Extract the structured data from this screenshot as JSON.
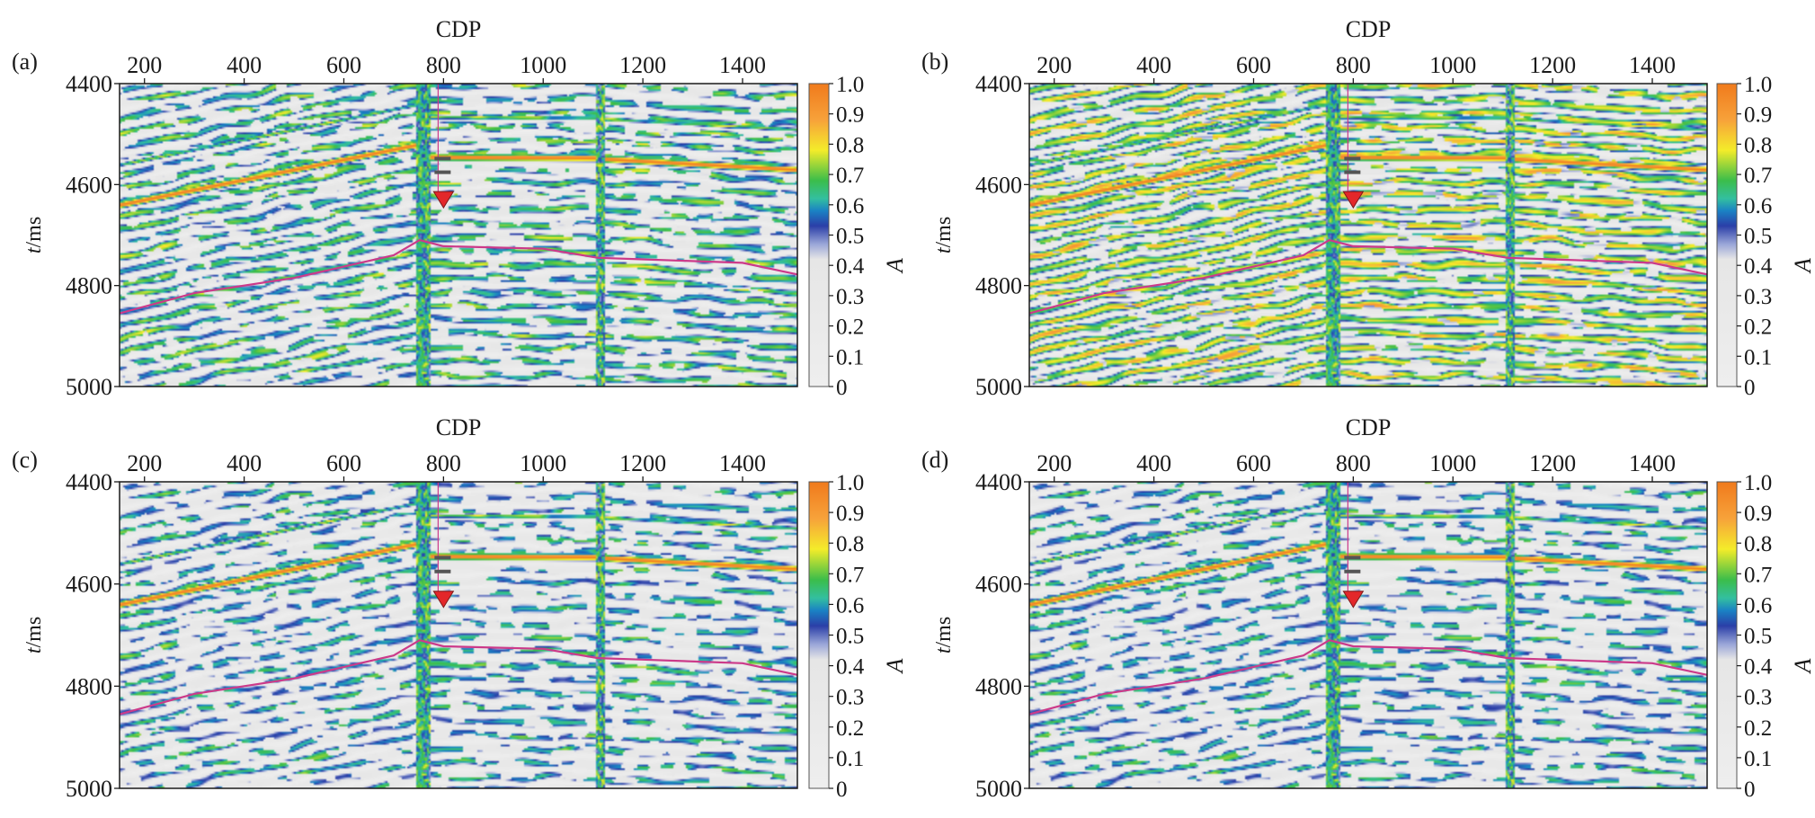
{
  "figure": {
    "panel_order": [
      "a",
      "b",
      "c",
      "d"
    ]
  },
  "colorbar": {
    "label": "A",
    "ticks": [
      "0",
      "0.1",
      "0.2",
      "0.3",
      "0.4",
      "0.5",
      "0.6",
      "0.7",
      "0.8",
      "0.9",
      "1.0"
    ],
    "range": [
      0,
      1
    ],
    "colormap": [
      {
        "at": 0.0,
        "color": "#eeeeee"
      },
      {
        "at": 0.42,
        "color": "#e6e6e6"
      },
      {
        "at": 0.47,
        "color": "#9aa6d8"
      },
      {
        "at": 0.53,
        "color": "#2b3fa8"
      },
      {
        "at": 0.58,
        "color": "#1a82c4"
      },
      {
        "at": 0.62,
        "color": "#33bfa0"
      },
      {
        "at": 0.68,
        "color": "#3bbd4a"
      },
      {
        "at": 0.78,
        "color": "#f4ec2a"
      },
      {
        "at": 0.88,
        "color": "#f7a23a"
      },
      {
        "at": 1.0,
        "color": "#f07a1c"
      }
    ]
  },
  "chart_data": [
    {
      "type": "heatmap",
      "panel_label": "(a)",
      "xlabel": "CDP",
      "ylabel_italic": "t",
      "ylabel_unit": "/ms",
      "xlim": [
        150,
        1510
      ],
      "ylim": [
        4400,
        5000
      ],
      "xticks": [
        "200",
        "400",
        "600",
        "800",
        "1000",
        "1200",
        "1400"
      ],
      "yticks": [
        "4400",
        "4600",
        "4800",
        "5000"
      ],
      "x_axis_position": "top",
      "value_label": "A",
      "section": "conventional",
      "faults_cdp": [
        752,
        1110
      ],
      "horizon_line": {
        "color": "#cc3a8a",
        "x": [
          150,
          300,
          500,
          700,
          752,
          800,
          1000,
          1110,
          1200,
          1400,
          1510
        ],
        "y": [
          4855,
          4815,
          4785,
          4740,
          4710,
          4722,
          4727,
          4745,
          4748,
          4755,
          4778
        ]
      },
      "well_marker": {
        "cdp": 800,
        "t": 4630,
        "color": "#e3272a"
      }
    },
    {
      "type": "heatmap",
      "panel_label": "(b)",
      "xlabel": "CDP",
      "ylabel_italic": "t",
      "ylabel_unit": "/ms",
      "xlim": [
        150,
        1510
      ],
      "ylim": [
        4400,
        5000
      ],
      "xticks": [
        "200",
        "400",
        "600",
        "800",
        "1000",
        "1200",
        "1400"
      ],
      "yticks": [
        "4400",
        "4600",
        "4800",
        "5000"
      ],
      "x_axis_position": "top",
      "value_label": "A",
      "section": "broadband",
      "faults_cdp": [
        752,
        1110
      ],
      "horizon_line": {
        "color": "#cc3a8a",
        "x": [
          150,
          300,
          500,
          700,
          752,
          800,
          1000,
          1110,
          1200,
          1400,
          1510
        ],
        "y": [
          4855,
          4815,
          4785,
          4740,
          4710,
          4722,
          4727,
          4745,
          4748,
          4755,
          4778
        ]
      },
      "well_marker": {
        "cdp": 800,
        "t": 4630,
        "color": "#e3272a"
      }
    },
    {
      "type": "heatmap",
      "panel_label": "(c)",
      "xlabel": "CDP",
      "ylabel_italic": "t",
      "ylabel_unit": "/ms",
      "xlim": [
        150,
        1510
      ],
      "ylim": [
        4400,
        5000
      ],
      "xticks": [
        "200",
        "400",
        "600",
        "800",
        "1000",
        "1200",
        "1400"
      ],
      "yticks": [
        "4400",
        "4600",
        "4800",
        "5000"
      ],
      "x_axis_position": "top",
      "value_label": "A",
      "section": "sparse",
      "faults_cdp": [
        752,
        1110
      ],
      "horizon_line": {
        "color": "#cc3a8a",
        "x": [
          150,
          300,
          500,
          700,
          752,
          800,
          1000,
          1110,
          1200,
          1400,
          1510
        ],
        "y": [
          4855,
          4815,
          4785,
          4740,
          4710,
          4722,
          4727,
          4745,
          4748,
          4755,
          4778
        ]
      },
      "well_marker": {
        "cdp": 800,
        "t": 4630,
        "color": "#e3272a"
      }
    },
    {
      "type": "heatmap",
      "panel_label": "(d)",
      "xlabel": "CDP",
      "ylabel_italic": "t",
      "ylabel_unit": "/ms",
      "xlim": [
        150,
        1510
      ],
      "ylim": [
        4400,
        5000
      ],
      "xticks": [
        "200",
        "400",
        "600",
        "800",
        "1000",
        "1200",
        "1400"
      ],
      "yticks": [
        "4400",
        "4600",
        "4800",
        "5000"
      ],
      "x_axis_position": "top",
      "value_label": "A",
      "section": "sparse",
      "faults_cdp": [
        752,
        1110
      ],
      "horizon_line": {
        "color": "#cc3a8a",
        "x": [
          150,
          300,
          500,
          700,
          752,
          800,
          1000,
          1110,
          1200,
          1400,
          1510
        ],
        "y": [
          4855,
          4815,
          4785,
          4740,
          4710,
          4722,
          4727,
          4745,
          4748,
          4755,
          4778
        ]
      },
      "well_marker": {
        "cdp": 800,
        "t": 4630,
        "color": "#e3272a"
      }
    }
  ]
}
